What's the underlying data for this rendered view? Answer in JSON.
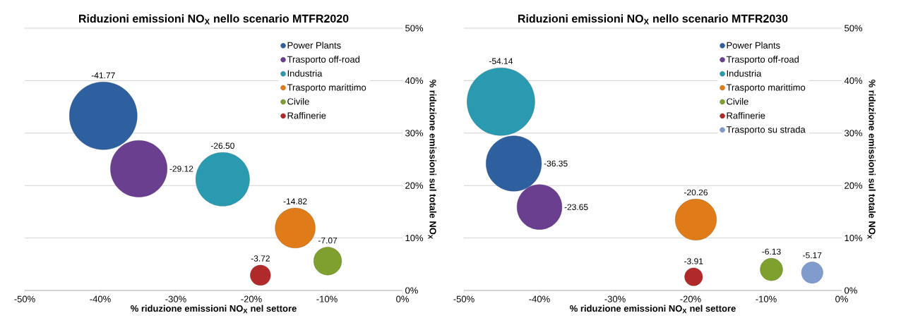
{
  "chart_data": [
    {
      "type": "bubble",
      "title": "Riduzioni emissioni NO$_{X}$ nello scenario MTFR2020",
      "xlabel": "% riduzione emissioni NO$_{X}$ nel settore",
      "ylabel": "% riduzione emissioni sul totale NO$_{X}$",
      "xlim": [
        -50,
        0
      ],
      "ylim": [
        0,
        50
      ],
      "xticks": [
        {
          "value": -50,
          "label": "-50%"
        },
        {
          "value": -40,
          "label": "-40%"
        },
        {
          "value": -30,
          "label": "-30%"
        },
        {
          "value": -20,
          "label": "-20%"
        },
        {
          "value": -10,
          "label": "-10%"
        },
        {
          "value": 0,
          "label": "0%"
        }
      ],
      "yticks": [
        {
          "value": 0,
          "label": "0%"
        },
        {
          "value": 10,
          "label": "10%"
        },
        {
          "value": 20,
          "label": "20%"
        },
        {
          "value": 30,
          "label": "30%"
        },
        {
          "value": 40,
          "label": "40%"
        },
        {
          "value": 50,
          "label": "50%"
        }
      ],
      "grid": "y",
      "legend": "top right",
      "marker": "circle",
      "series": [
        {
          "name": "Power Plants",
          "color": "#2e5f9e",
          "x": [
            -39.6
          ],
          "values": [
            33.3
          ],
          "sizes": [
            1
          ]
        },
        {
          "name": "Trasporto off-road",
          "color": "#6b3f8f",
          "x": [
            -34.9
          ],
          "values": [
            23.2
          ],
          "sizes": [
            0.7
          ]
        },
        {
          "name": "Industria",
          "color": "#2a9ab0",
          "x": [
            -23.8
          ],
          "values": [
            21.2
          ],
          "sizes": [
            0.63
          ]
        },
        {
          "name": "Trasporto marittimo",
          "color": "#e07b1a",
          "x": [
            -14.2
          ],
          "values": [
            11.9
          ],
          "sizes": [
            0.35
          ]
        },
        {
          "name": "Civile",
          "color": "#7ea02e",
          "x": [
            -9.9
          ],
          "values": [
            5.6
          ],
          "sizes": [
            0.17
          ]
        },
        {
          "name": "Raffinerie",
          "color": "#b02a2a",
          "x": [
            -18.8
          ],
          "values": [
            2.9
          ],
          "sizes": [
            0.09
          ]
        }
      ],
      "annotations": [
        "-41.77",
        "-29.12",
        "-26.50",
        "-14.82",
        "-7.07",
        "-3.72"
      ]
    },
    {
      "type": "bubble",
      "title": "Riduzioni emissioni NO$_{X}$ nello scenario MTFR2030",
      "xlabel": "% riduzione emissioni NO$_{X}$ nel settore",
      "ylabel": "% riduzione emissioni sul totale NO$_{X}$",
      "xlim": [
        -50,
        0
      ],
      "ylim": [
        0,
        50
      ],
      "xticks": [
        {
          "value": -50,
          "label": "-50%"
        },
        {
          "value": -40,
          "label": "-40%"
        },
        {
          "value": -30,
          "label": "-30%"
        },
        {
          "value": -20,
          "label": "-20%"
        },
        {
          "value": -10,
          "label": "-10%"
        },
        {
          "value": 0,
          "label": "0%"
        }
      ],
      "yticks": [
        {
          "value": 0,
          "label": "0%"
        },
        {
          "value": 10,
          "label": "10%"
        },
        {
          "value": 20,
          "label": "20%"
        },
        {
          "value": 30,
          "label": "30%"
        },
        {
          "value": 40,
          "label": "40%"
        },
        {
          "value": 50,
          "label": "50%"
        }
      ],
      "grid": "y",
      "legend": "top right",
      "marker": "circle",
      "series": [
        {
          "name": "Power Plants",
          "color": "#2e5f9e",
          "x": [
            -43.4
          ],
          "values": [
            24.2
          ],
          "sizes": [
            0.67
          ]
        },
        {
          "name": "Trasporto off-road",
          "color": "#6b3f8f",
          "x": [
            -40.0
          ],
          "values": [
            15.9
          ],
          "sizes": [
            0.44
          ]
        },
        {
          "name": "Industria",
          "color": "#2a9ab0",
          "x": [
            -45.1
          ],
          "values": [
            36.0
          ],
          "sizes": [
            1
          ]
        },
        {
          "name": "Trasporto marittimo",
          "color": "#e07b1a",
          "x": [
            -19.3
          ],
          "values": [
            13.5
          ],
          "sizes": [
            0.37
          ]
        },
        {
          "name": "Civile",
          "color": "#7ea02e",
          "x": [
            -9.3
          ],
          "values": [
            4.0
          ],
          "sizes": [
            0.11
          ]
        },
        {
          "name": "Raffinerie",
          "color": "#b02a2a",
          "x": [
            -19.6
          ],
          "values": [
            2.6
          ],
          "sizes": [
            0.07
          ]
        },
        {
          "name": "Trasporto su strada",
          "color": "#7f9ccc",
          "x": [
            -3.9
          ],
          "values": [
            3.4
          ],
          "sizes": [
            0.1
          ]
        }
      ],
      "annotations": [
        "-36.35",
        "-23.65",
        "-54.14",
        "-20.26",
        "-6.13",
        "-3.91",
        "-5.17"
      ]
    }
  ]
}
